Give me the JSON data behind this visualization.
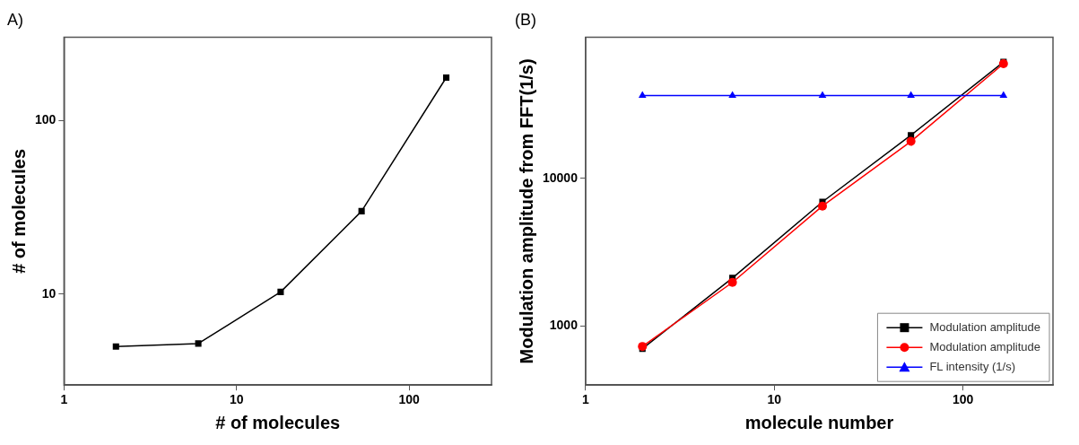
{
  "chart_data": [
    {
      "type": "line",
      "title": "A)",
      "xlabel": "# of molecules",
      "ylabel": "# of molecules",
      "log": "xy",
      "xlim": [
        1,
        300
      ],
      "xticks": [
        1,
        10,
        100
      ],
      "ylim": [
        3,
        300
      ],
      "yticks": [
        10,
        100
      ],
      "grid": false,
      "legend": false,
      "series": [
        {
          "color": "#000000",
          "marker": "square",
          "x": [
            2,
            6,
            18,
            53,
            164
          ],
          "values": [
            5.0,
            5.2,
            10.3,
            30,
            176
          ]
        }
      ]
    },
    {
      "type": "line",
      "title": "(B)",
      "xlabel": "molecule number",
      "ylabel": "Modulation amplitude from FFT(1/s)",
      "log": "xy",
      "xlim": [
        1,
        300
      ],
      "xticks": [
        1,
        10,
        100
      ],
      "ylim": [
        400,
        90000
      ],
      "yticks": [
        1000,
        10000
      ],
      "grid": false,
      "legend": "bottom right",
      "series": [
        {
          "name": "Modulation amplitude",
          "color": "#000000",
          "marker": "square",
          "x": [
            2,
            6,
            18,
            53,
            164
          ],
          "values": [
            705,
            2120,
            6940,
            19600,
            61300
          ]
        },
        {
          "name": "Modulation amplitude",
          "color": "#ff0000",
          "marker": "circle",
          "x": [
            2,
            6,
            18,
            53,
            164
          ],
          "values": [
            730,
            1980,
            6500,
            17800,
            59700
          ]
        },
        {
          "name": "FL intensity (1/s)",
          "color": "#0000ff",
          "marker": "triangle",
          "x": [
            2,
            6,
            18,
            53,
            164
          ],
          "values": [
            36400,
            36400,
            36400,
            36400,
            36400
          ]
        }
      ]
    }
  ]
}
